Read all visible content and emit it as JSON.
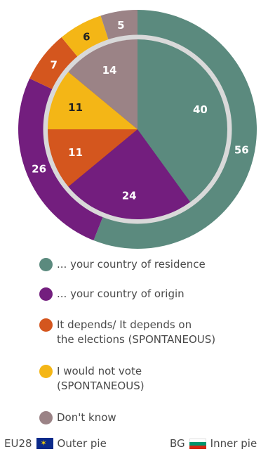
{
  "chart_data": {
    "type": "pie",
    "categories": [
      "... your country of residence",
      "... your country of origin",
      "It depends/ It depends on the elections (SPONTANEOUS)",
      "I would not vote (SPONTANEOUS)",
      "Don't know"
    ],
    "colors": [
      "#5b8a7e",
      "#731e7e",
      "#d4561e",
      "#f4b616",
      "#9b8386"
    ],
    "series": [
      {
        "name": "Outer pie",
        "values": [
          56,
          26,
          7,
          6,
          5
        ]
      },
      {
        "name": "Inner pie",
        "values": [
          40,
          24,
          11,
          11,
          14
        ]
      }
    ],
    "label_colors": {
      "outer": [
        "#ffffff",
        "#ffffff",
        "#ffffff",
        "#222222",
        "#ffffff"
      ],
      "inner": [
        "#ffffff",
        "#ffffff",
        "#ffffff",
        "#222222",
        "#ffffff"
      ]
    }
  },
  "legend": {
    "items": [
      {
        "label_line1": "... your country of residence",
        "label_line2": ""
      },
      {
        "label_line1": "... your country of origin",
        "label_line2": ""
      },
      {
        "label_line1": "It depends/ It depends on",
        "label_line2": "the elections (SPONTANEOUS)"
      },
      {
        "label_line1": "I would not vote",
        "label_line2": "(SPONTANEOUS)"
      },
      {
        "label_line1": "Don't know",
        "label_line2": ""
      }
    ]
  },
  "footer": {
    "left_label": "EU28",
    "left_pie": "Outer pie",
    "right_label": "BG",
    "right_pie": "Inner pie",
    "eu_flag_icon": "eu-flag-icon",
    "bg_flag_icon": "bulgaria-flag-icon",
    "bg_flag_colors": [
      "#ffffff",
      "#00966e",
      "#d62612"
    ]
  }
}
